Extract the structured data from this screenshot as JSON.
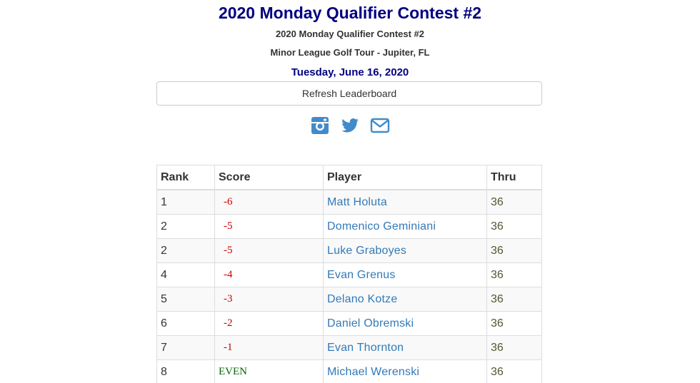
{
  "header": {
    "title": "2020 Monday Qualifier Contest #2",
    "subtitle": "2020 Monday Qualifier Contest #2",
    "tour": "Minor League Golf Tour - Jupiter, FL",
    "date": "Tuesday, June 16, 2020"
  },
  "refresh_button": {
    "label": "Refresh Leaderboard"
  },
  "social": {
    "color": "#428bca",
    "icons": [
      "instagram-icon",
      "twitter-icon",
      "envelope-icon"
    ]
  },
  "table": {
    "headers": {
      "rank": "Rank",
      "score": "Score",
      "player": "Player",
      "thru": "Thru"
    },
    "rows": [
      {
        "rank": "1",
        "score": "-6",
        "player": "Matt Holuta",
        "thru": "36"
      },
      {
        "rank": "2",
        "score": "-5",
        "player": "Domenico Geminiani",
        "thru": "36"
      },
      {
        "rank": "2",
        "score": "-5",
        "player": "Luke Graboyes",
        "thru": "36"
      },
      {
        "rank": "4",
        "score": "-4",
        "player": "Evan Grenus",
        "thru": "36"
      },
      {
        "rank": "5",
        "score": "-3",
        "player": "Delano Kotze",
        "thru": "36"
      },
      {
        "rank": "6",
        "score": "-2",
        "player": "Daniel Obremski",
        "thru": "36"
      },
      {
        "rank": "7",
        "score": "-1",
        "player": "Evan Thornton",
        "thru": "36"
      },
      {
        "rank": "8",
        "score": "EVEN",
        "player": "Michael Werenski",
        "thru": "36"
      }
    ]
  },
  "colors": {
    "title": "#000080",
    "under_par": "#cc0000",
    "even_par": "#006600",
    "link": "#337ab7"
  }
}
